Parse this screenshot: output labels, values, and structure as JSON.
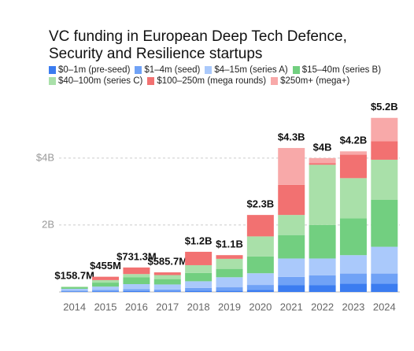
{
  "chart_data": {
    "type": "stacked-bar",
    "title": "VC funding in European Deep Tech Defence, Security and Resilience startups",
    "categories": [
      "2014",
      "2015",
      "2016",
      "2017",
      "2018",
      "2019",
      "2020",
      "2021",
      "2022",
      "2023",
      "2024"
    ],
    "series": [
      {
        "name": "$0–1m (pre-seed)",
        "color": "#3b7cf0",
        "values": [
          10,
          20,
          25,
          20,
          40,
          40,
          60,
          200,
          200,
          250,
          250
        ]
      },
      {
        "name": "$1–4m (seed)",
        "color": "#70a2f6",
        "values": [
          25,
          40,
          60,
          55,
          80,
          100,
          150,
          250,
          300,
          300,
          300
        ]
      },
      {
        "name": "$4–15m (series A)",
        "color": "#aac9fb",
        "values": [
          60,
          100,
          150,
          150,
          200,
          300,
          350,
          550,
          500,
          550,
          800
        ]
      },
      {
        "name": "$15–40m (series B)",
        "color": "#72cf80",
        "values": [
          45,
          120,
          200,
          160,
          250,
          250,
          500,
          700,
          1000,
          1100,
          1400
        ]
      },
      {
        "name": "$40–100m (series C)",
        "color": "#a9e0a9",
        "values": [
          18.7,
          75,
          100,
          120,
          230,
          300,
          600,
          600,
          1800,
          1200,
          1200
        ]
      },
      {
        "name": "$100–250m (mega rounds)",
        "color": "#f27171",
        "values": [
          0,
          100,
          196.3,
          80.7,
          400,
          110,
          640,
          900,
          50,
          700,
          550
        ]
      },
      {
        "name": "$250m+ (mega+)",
        "color": "#f8a9a9",
        "values": [
          0,
          0,
          0,
          0,
          0,
          0,
          0,
          1100,
          150,
          100,
          700
        ]
      }
    ],
    "totals": {
      "values": [
        158.7,
        455,
        731.3,
        585.7,
        1200,
        1100,
        2300,
        4300,
        4000,
        4200,
        5200
      ],
      "value_labels": [
        "$158.7M",
        "$455M",
        "$731.3M",
        "$585.7M",
        "$1.2B",
        "$1.1B",
        "$2.3B",
        "$4.3B",
        "$4B",
        "$4.2B",
        "$5.2B"
      ]
    },
    "ylim": [
      0,
      5500
    ],
    "yticks": [
      {
        "value": 2000,
        "label": "2B"
      },
      {
        "value": 4000,
        "label": "$4B"
      }
    ],
    "grid": true
  }
}
